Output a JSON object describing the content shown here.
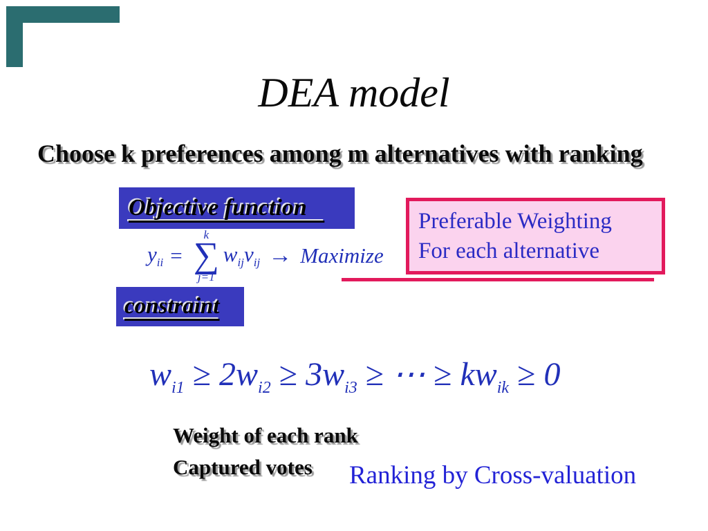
{
  "slide": {
    "title": "DEA model",
    "subtitle": "Choose k preferences among m alternatives with ranking",
    "objective": {
      "label": "Objective function   "
    },
    "constraint": {
      "label": "constraint"
    },
    "formula1": {
      "lhs": "y",
      "lhs_sub": "ii",
      "equals": "=",
      "sigma_upper": "k",
      "sigma": "∑",
      "sigma_lower": "j=1",
      "term_w": "w",
      "term_w_sub": "ij",
      "term_v": "v",
      "term_v_sub": "ij",
      "arrow": "→",
      "goal": "Maximize"
    },
    "callout": {
      "line1": "Preferable Weighting",
      "line2": "For each alternative"
    },
    "formula2": {
      "t1": "w",
      "s1": "i1",
      "ge1": "≥",
      "t2": "2w",
      "s2": "i2",
      "ge2": "≥",
      "t3": "3w",
      "s3": "i3",
      "ge3": "≥",
      "dots": "⋯",
      "ge4": "≥",
      "t4": "kw",
      "s4": "ik",
      "ge5": "≥",
      "zero": "0"
    },
    "note1": "Weight of each rank",
    "note2": "Captured votes",
    "footer": "Ranking by Cross-valuation",
    "colors": {
      "accent_teal": "#2b6d70",
      "box_blue": "#3a3abe",
      "math_blue": "#2130b8",
      "callout_text_blue": "#2b2bc4",
      "footer_blue": "#2323d6",
      "pink_fill": "#fbd3ee",
      "crimson": "#e21a5c",
      "shadow_gray": "#9a9a9a"
    }
  }
}
